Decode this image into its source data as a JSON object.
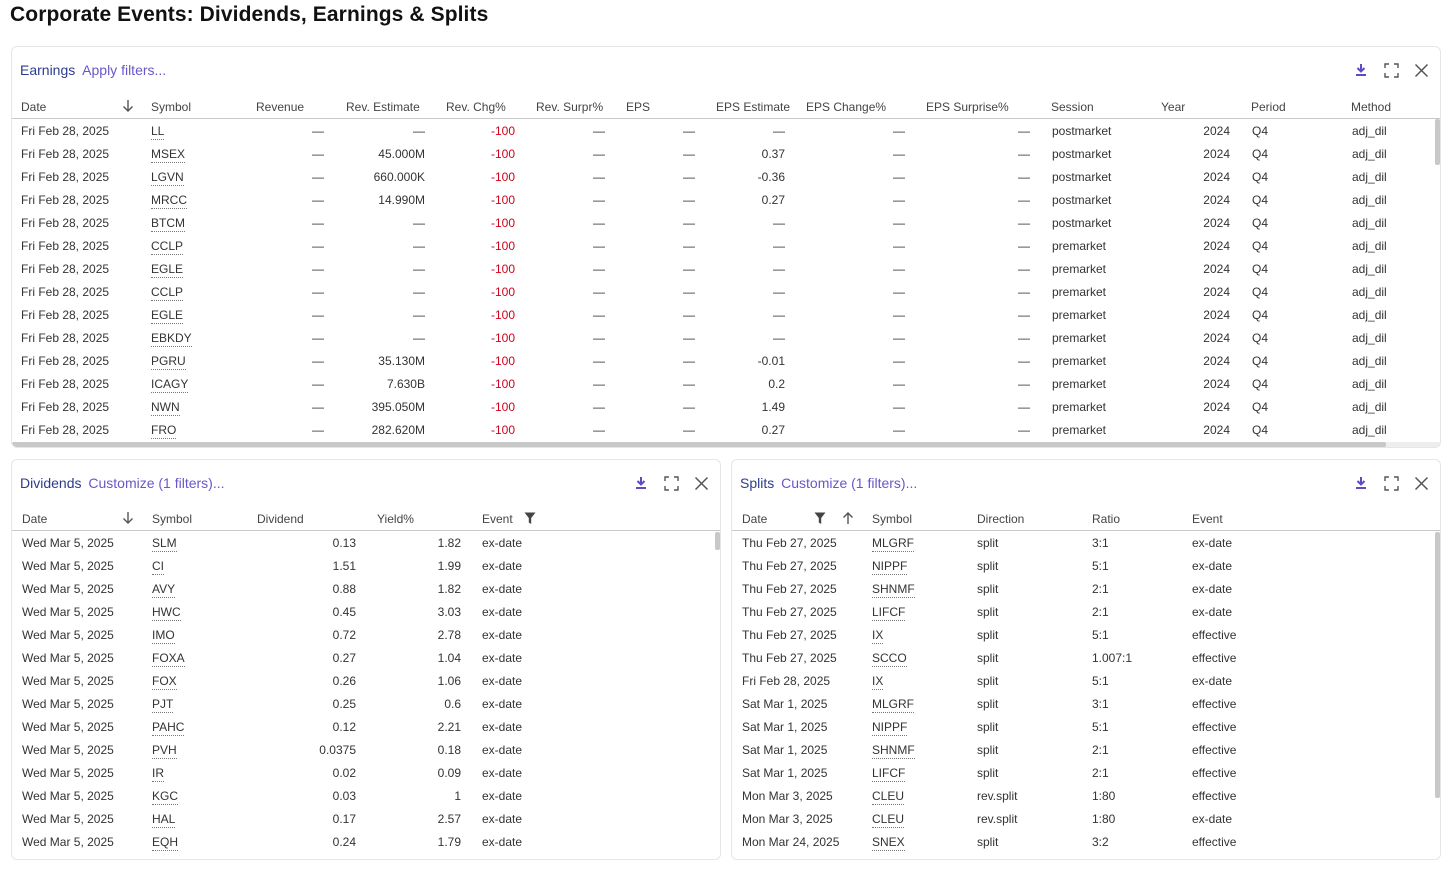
{
  "page": {
    "title": "Corporate Events: Dividends, Earnings & Splits"
  },
  "earnings": {
    "name": "Earnings",
    "link": "Apply filters...",
    "columns": [
      "Date",
      "Symbol",
      "Revenue",
      "Rev. Estimate",
      "Rev. Chg%",
      "Rev. Surpr%",
      "EPS",
      "EPS Estimate",
      "EPS Change%",
      "EPS Surprise%",
      "Session",
      "Year",
      "Period",
      "Method"
    ],
    "rows": [
      [
        "Fri Feb 28, 2025",
        "LL",
        "—",
        "—",
        "-100",
        "—",
        "—",
        "—",
        "—",
        "—",
        "postmarket",
        "2024",
        "Q4",
        "adj_dil"
      ],
      [
        "Fri Feb 28, 2025",
        "MSEX",
        "—",
        "45.000M",
        "-100",
        "—",
        "—",
        "0.37",
        "—",
        "—",
        "postmarket",
        "2024",
        "Q4",
        "adj_dil"
      ],
      [
        "Fri Feb 28, 2025",
        "LGVN",
        "—",
        "660.000K",
        "-100",
        "—",
        "—",
        "-0.36",
        "—",
        "—",
        "postmarket",
        "2024",
        "Q4",
        "adj_dil"
      ],
      [
        "Fri Feb 28, 2025",
        "MRCC",
        "—",
        "14.990M",
        "-100",
        "—",
        "—",
        "0.27",
        "—",
        "—",
        "postmarket",
        "2024",
        "Q4",
        "adj_dil"
      ],
      [
        "Fri Feb 28, 2025",
        "BTCM",
        "—",
        "—",
        "-100",
        "—",
        "—",
        "—",
        "—",
        "—",
        "postmarket",
        "2024",
        "Q4",
        "adj_dil"
      ],
      [
        "Fri Feb 28, 2025",
        "CCLP",
        "—",
        "—",
        "-100",
        "—",
        "—",
        "—",
        "—",
        "—",
        "premarket",
        "2024",
        "Q4",
        "adj_dil"
      ],
      [
        "Fri Feb 28, 2025",
        "EGLE",
        "—",
        "—",
        "-100",
        "—",
        "—",
        "—",
        "—",
        "—",
        "premarket",
        "2024",
        "Q4",
        "adj_dil"
      ],
      [
        "Fri Feb 28, 2025",
        "CCLP",
        "—",
        "—",
        "-100",
        "—",
        "—",
        "—",
        "—",
        "—",
        "premarket",
        "2024",
        "Q4",
        "adj_dil"
      ],
      [
        "Fri Feb 28, 2025",
        "EGLE",
        "—",
        "—",
        "-100",
        "—",
        "—",
        "—",
        "—",
        "—",
        "premarket",
        "2024",
        "Q4",
        "adj_dil"
      ],
      [
        "Fri Feb 28, 2025",
        "EBKDY",
        "—",
        "—",
        "-100",
        "—",
        "—",
        "—",
        "—",
        "—",
        "premarket",
        "2024",
        "Q4",
        "adj_dil"
      ],
      [
        "Fri Feb 28, 2025",
        "PGRU",
        "—",
        "35.130M",
        "-100",
        "—",
        "—",
        "-0.01",
        "—",
        "—",
        "premarket",
        "2024",
        "Q4",
        "adj_dil"
      ],
      [
        "Fri Feb 28, 2025",
        "ICAGY",
        "—",
        "7.630B",
        "-100",
        "—",
        "—",
        "0.2",
        "—",
        "—",
        "premarket",
        "2024",
        "Q4",
        "adj_dil"
      ],
      [
        "Fri Feb 28, 2025",
        "NWN",
        "—",
        "395.050M",
        "-100",
        "—",
        "—",
        "1.49",
        "—",
        "—",
        "premarket",
        "2024",
        "Q4",
        "adj_dil"
      ],
      [
        "Fri Feb 28, 2025",
        "FRO",
        "—",
        "282.620M",
        "-100",
        "—",
        "—",
        "0.27",
        "—",
        "—",
        "premarket",
        "2024",
        "Q4",
        "adj_dil"
      ]
    ]
  },
  "dividends": {
    "name": "Dividends",
    "link": "Customize (1 filters)...",
    "columns": [
      "Date",
      "Symbol",
      "Dividend",
      "Yield%",
      "Event"
    ],
    "rows": [
      [
        "Wed Mar 5, 2025",
        "SLM",
        "0.13",
        "1.82",
        "ex-date"
      ],
      [
        "Wed Mar 5, 2025",
        "CI",
        "1.51",
        "1.99",
        "ex-date"
      ],
      [
        "Wed Mar 5, 2025",
        "AVY",
        "0.88",
        "1.82",
        "ex-date"
      ],
      [
        "Wed Mar 5, 2025",
        "HWC",
        "0.45",
        "3.03",
        "ex-date"
      ],
      [
        "Wed Mar 5, 2025",
        "IMO",
        "0.72",
        "2.78",
        "ex-date"
      ],
      [
        "Wed Mar 5, 2025",
        "FOXA",
        "0.27",
        "1.04",
        "ex-date"
      ],
      [
        "Wed Mar 5, 2025",
        "FOX",
        "0.26",
        "1.06",
        "ex-date"
      ],
      [
        "Wed Mar 5, 2025",
        "PJT",
        "0.25",
        "0.6",
        "ex-date"
      ],
      [
        "Wed Mar 5, 2025",
        "PAHC",
        "0.12",
        "2.21",
        "ex-date"
      ],
      [
        "Wed Mar 5, 2025",
        "PVH",
        "0.0375",
        "0.18",
        "ex-date"
      ],
      [
        "Wed Mar 5, 2025",
        "IR",
        "0.02",
        "0.09",
        "ex-date"
      ],
      [
        "Wed Mar 5, 2025",
        "KGC",
        "0.03",
        "1",
        "ex-date"
      ],
      [
        "Wed Mar 5, 2025",
        "HAL",
        "0.17",
        "2.57",
        "ex-date"
      ],
      [
        "Wed Mar 5, 2025",
        "EQH",
        "0.24",
        "1.79",
        "ex-date"
      ]
    ]
  },
  "splits": {
    "name": "Splits",
    "link": "Customize (1 filters)...",
    "columns": [
      "Date",
      "Symbol",
      "Direction",
      "Ratio",
      "Event"
    ],
    "rows": [
      [
        "Thu Feb 27, 2025",
        "MLGRF",
        "split",
        "3:1",
        "ex-date"
      ],
      [
        "Thu Feb 27, 2025",
        "NIPPF",
        "split",
        "5:1",
        "ex-date"
      ],
      [
        "Thu Feb 27, 2025",
        "SHNMF",
        "split",
        "2:1",
        "ex-date"
      ],
      [
        "Thu Feb 27, 2025",
        "LIFCF",
        "split",
        "2:1",
        "ex-date"
      ],
      [
        "Thu Feb 27, 2025",
        "IX",
        "split",
        "5:1",
        "effective"
      ],
      [
        "Thu Feb 27, 2025",
        "SCCO",
        "split",
        "1.007:1",
        "effective"
      ],
      [
        "Fri Feb 28, 2025",
        "IX",
        "split",
        "5:1",
        "ex-date"
      ],
      [
        "Sat Mar 1, 2025",
        "MLGRF",
        "split",
        "3:1",
        "effective"
      ],
      [
        "Sat Mar 1, 2025",
        "NIPPF",
        "split",
        "5:1",
        "effective"
      ],
      [
        "Sat Mar 1, 2025",
        "SHNMF",
        "split",
        "2:1",
        "effective"
      ],
      [
        "Sat Mar 1, 2025",
        "LIFCF",
        "split",
        "2:1",
        "effective"
      ],
      [
        "Mon Mar 3, 2025",
        "CLEU",
        "rev.split",
        "1:80",
        "effective"
      ],
      [
        "Mon Mar 3, 2025",
        "CLEU",
        "rev.split",
        "1:80",
        "ex-date"
      ],
      [
        "Mon Mar 24, 2025",
        "SNEX",
        "split",
        "3:2",
        "effective"
      ]
    ]
  },
  "icons": {
    "download": "download-icon",
    "expand": "expand-icon",
    "close": "close-icon",
    "sort_down": "sort-descending-icon",
    "sort_up": "sort-ascending-icon",
    "filter": "filter-icon"
  },
  "colors": {
    "negative": "#d0021b",
    "accent": "#6b56c9",
    "panel_title": "#2b3c8f"
  }
}
